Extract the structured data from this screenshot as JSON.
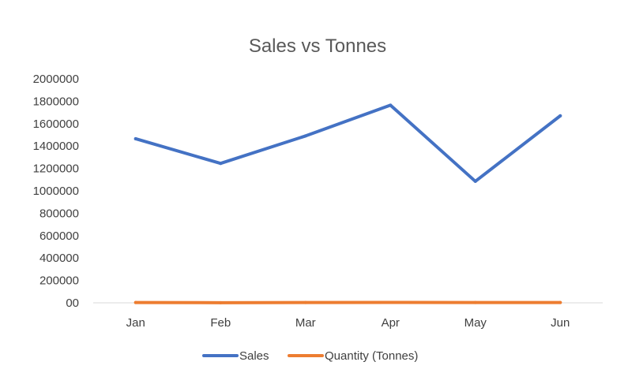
{
  "chart_data": {
    "type": "line",
    "title": "Sales vs Tonnes",
    "xlabel": "",
    "ylabel": "",
    "categories": [
      "Jan",
      "Feb",
      "Mar",
      "Apr",
      "May",
      "Jun"
    ],
    "ylim": [
      0,
      2000000
    ],
    "y_ticks": [
      "00",
      "200000",
      "400000",
      "600000",
      "800000",
      "1000000",
      "1200000",
      "1400000",
      "1600000",
      "1800000",
      "2000000"
    ],
    "y_tick_values": [
      0,
      200000,
      400000,
      600000,
      800000,
      1000000,
      1200000,
      1400000,
      1600000,
      1800000,
      2000000
    ],
    "grid": false,
    "legend_position": "bottom",
    "series": [
      {
        "name": "Sales",
        "color": "#4472C4",
        "values": [
          1465000,
          1245000,
          1490000,
          1765000,
          1085000,
          1670000
        ]
      },
      {
        "name": "Quantity (Tonnes)",
        "color": "#ED7D31",
        "values": [
          2500,
          1000,
          3000,
          3500,
          3000,
          3000
        ]
      }
    ]
  }
}
